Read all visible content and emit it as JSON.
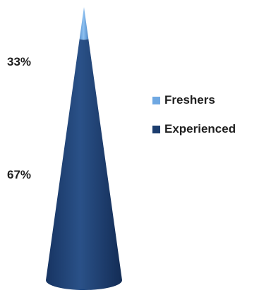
{
  "chart_data": {
    "type": "cone",
    "title": "",
    "categories": [
      "Freshers",
      "Experienced"
    ],
    "values": [
      33,
      67
    ],
    "value_labels": [
      "33%",
      "67%"
    ],
    "colors": {
      "Freshers": "#6fa8e2",
      "Experienced": "#1c3d6e"
    },
    "legend_placement": "right"
  }
}
